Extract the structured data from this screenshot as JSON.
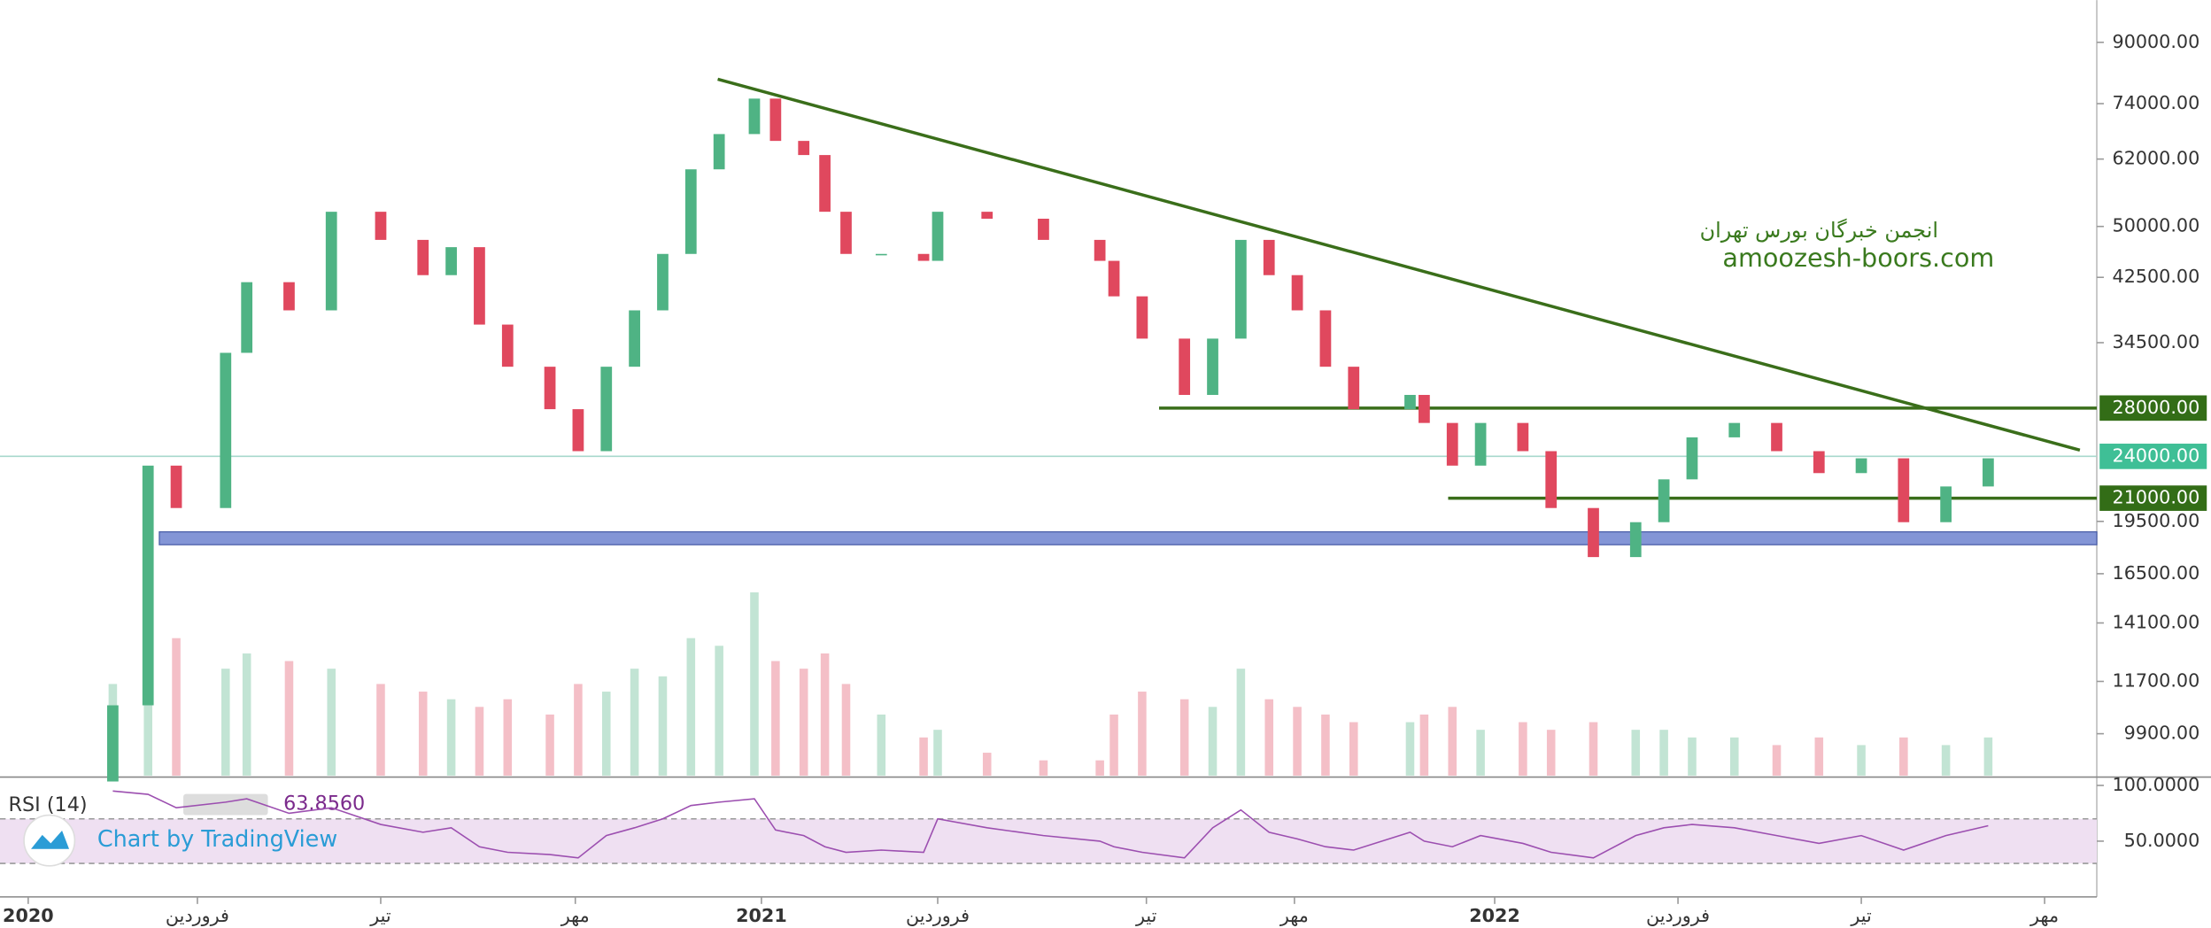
{
  "chart_data": {
    "type": "candlestick",
    "ylog": true,
    "ylim": [
      8660,
      103000
    ],
    "yticks": [
      {
        "value": 90000,
        "label": "90000.00"
      },
      {
        "value": 74000,
        "label": "74000.00"
      },
      {
        "value": 62000,
        "label": "62000.00"
      },
      {
        "value": 50000,
        "label": "50000.00"
      },
      {
        "value": 42500,
        "label": "42500.00"
      },
      {
        "value": 34500,
        "label": "34500.00"
      },
      {
        "value": 19500,
        "label": "19500.00"
      },
      {
        "value": 16500,
        "label": "16500.00"
      },
      {
        "value": 14100,
        "label": "14100.00"
      },
      {
        "value": 11700,
        "label": "11700.00"
      },
      {
        "value": 9900,
        "label": "9900.00"
      }
    ],
    "xlim": [
      -2,
      146.7
    ],
    "xticks": [
      {
        "value": 0,
        "label": "2020"
      },
      {
        "value": 12,
        "label": "فروردین"
      },
      {
        "value": 25,
        "label": "تیر"
      },
      {
        "value": 38.8,
        "label": "مهر"
      },
      {
        "value": 52,
        "label": "2021"
      },
      {
        "value": 64.5,
        "label": "فروردین"
      },
      {
        "value": 79.3,
        "label": "تیر"
      },
      {
        "value": 89.8,
        "label": "مهر"
      },
      {
        "value": 104,
        "label": "2022"
      },
      {
        "value": 117,
        "label": "فروردین"
      },
      {
        "value": 130,
        "label": "تیر"
      },
      {
        "value": 143,
        "label": "مهر"
      }
    ],
    "up_color": "#4fb384",
    "down_color": "#e0485e",
    "candles": {
      "x": [
        6,
        8.5,
        10.5,
        14,
        15.5,
        18.5,
        21.5,
        25,
        28,
        30,
        32,
        34,
        37,
        39,
        41,
        43,
        45,
        47,
        49,
        51.5,
        53,
        55,
        56.5,
        58,
        60.5,
        63.5,
        64.5,
        68,
        72,
        76,
        77,
        79,
        82,
        84,
        86,
        88,
        90,
        92,
        94,
        98,
        99,
        101,
        103,
        106,
        108,
        111,
        114,
        116,
        118,
        121,
        124,
        127,
        130,
        133,
        136,
        139
      ],
      "open": [
        8500,
        10840,
        23300,
        20350,
        33400,
        41850,
        38250,
        52400,
        47900,
        42800,
        46800,
        36550,
        31950,
        27900,
        24400,
        31950,
        38250,
        45800,
        60000,
        67150,
        75200,
        65700,
        62800,
        52400,
        45800,
        45800,
        44800,
        52400,
        51250,
        47900,
        44800,
        40000,
        34950,
        29200,
        34950,
        47900,
        42800,
        38250,
        31950,
        27900,
        29200,
        26700,
        23300,
        26700,
        24400,
        20350,
        17400,
        19450,
        22300,
        25500,
        26700,
        24400,
        22750,
        23850,
        19450,
        21800
      ],
      "close": [
        10840,
        23300,
        20350,
        33400,
        41850,
        38250,
        52400,
        47900,
        42800,
        46800,
        36550,
        31950,
        27900,
        24400,
        31950,
        38250,
        45800,
        60000,
        67150,
        75200,
        65700,
        62800,
        52400,
        45800,
        45800,
        44800,
        52400,
        51250,
        47900,
        44800,
        40000,
        34950,
        29200,
        34950,
        47900,
        42800,
        38250,
        31950,
        27900,
        29200,
        26700,
        23300,
        26700,
        24400,
        20350,
        17400,
        19450,
        22300,
        25500,
        26700,
        24400,
        22750,
        23850,
        19450,
        21800,
        23850
      ]
    },
    "volume": [
      60,
      110,
      90,
      70,
      80,
      75,
      70,
      60,
      55,
      50,
      45,
      50,
      40,
      60,
      55,
      70,
      65,
      90,
      85,
      120,
      75,
      70,
      80,
      60,
      40,
      25,
      30,
      15,
      10,
      10,
      40,
      55,
      50,
      45,
      70,
      50,
      45,
      40,
      35,
      35,
      40,
      45,
      30,
      35,
      30,
      35,
      30,
      30,
      25,
      25,
      20,
      25,
      20,
      25,
      20,
      25
    ],
    "trendline": {
      "x": [
        48.9,
        145.5
      ],
      "y": [
        80000,
        24480
      ],
      "color": "#3a6e1a"
    },
    "levels": [
      {
        "value": 28000,
        "label": "28000.00",
        "from": 80.2,
        "color": "#3a6e1a",
        "label_color": "#336d17"
      },
      {
        "value": 24000,
        "label": "24000.00",
        "from": -2,
        "color": "#a8d8cc",
        "label_color": "#3fbf96"
      },
      {
        "value": 21000,
        "label": "21000.00",
        "from": 100.7,
        "color": "#3a6e1a",
        "label_color": "#336d17"
      }
    ],
    "band": {
      "from": 9.3,
      "low": 18100,
      "high": 18860,
      "color": "#8395d6"
    },
    "watermark": [
      "انجمن خبرگان بورس تهران",
      "amoozesh-boors.com"
    ],
    "rsi": {
      "name": "RSI (14)",
      "last": {
        "value": 63.856,
        "label": "63.8560"
      },
      "color": "#9c4fb0",
      "ylim": [
        1.25,
        106.25
      ],
      "yticks": [
        {
          "value": 100,
          "label": "100.0000"
        },
        {
          "value": 50,
          "label": "50.0000"
        }
      ],
      "band": [
        30,
        70
      ],
      "values": [
        95,
        92,
        80,
        85,
        88,
        75,
        80,
        65,
        58,
        62,
        45,
        40,
        38,
        35,
        55,
        62,
        70,
        82,
        85,
        88,
        60,
        55,
        45,
        40,
        42,
        40,
        70,
        62,
        55,
        50,
        45,
        40,
        35,
        62,
        78,
        58,
        52,
        45,
        42,
        58,
        50,
        45,
        55,
        48,
        40,
        35,
        55,
        62,
        65,
        62,
        55,
        48,
        55,
        42,
        55,
        63.856
      ]
    },
    "credit": "Chart by TradingView"
  }
}
